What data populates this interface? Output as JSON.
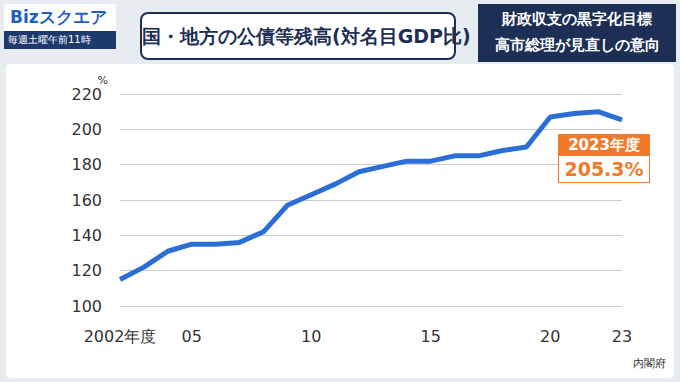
{
  "program": {
    "logo": "Bizスクエア",
    "schedule": "毎週土曜午前11時"
  },
  "headline": [
    "財政収支の黒字化目標",
    "高市総理が見直しの意向"
  ],
  "chart_data": {
    "type": "line",
    "title": "国・地方の公債等残高(対名目GDP比)",
    "ylabel": "%",
    "source": "内閣府",
    "categories": [
      "2002年度",
      null,
      null,
      "05",
      null,
      null,
      null,
      null,
      "10",
      null,
      null,
      null,
      null,
      "15",
      null,
      null,
      null,
      null,
      "20",
      null,
      null,
      "23"
    ],
    "values": [
      115,
      122,
      131,
      135,
      135,
      136,
      142,
      157,
      163,
      169,
      176,
      179,
      182,
      182,
      185,
      185,
      188,
      190,
      207,
      209,
      210,
      205.3
    ],
    "color": "#2b6fd6",
    "ylim": [
      100,
      220
    ],
    "yticks": [
      100,
      120,
      140,
      160,
      180,
      200,
      220
    ],
    "grid": true,
    "annotation": {
      "index": 21,
      "text": "2023年度",
      "value_label": "205.3%",
      "color": "#f07a2a"
    }
  }
}
